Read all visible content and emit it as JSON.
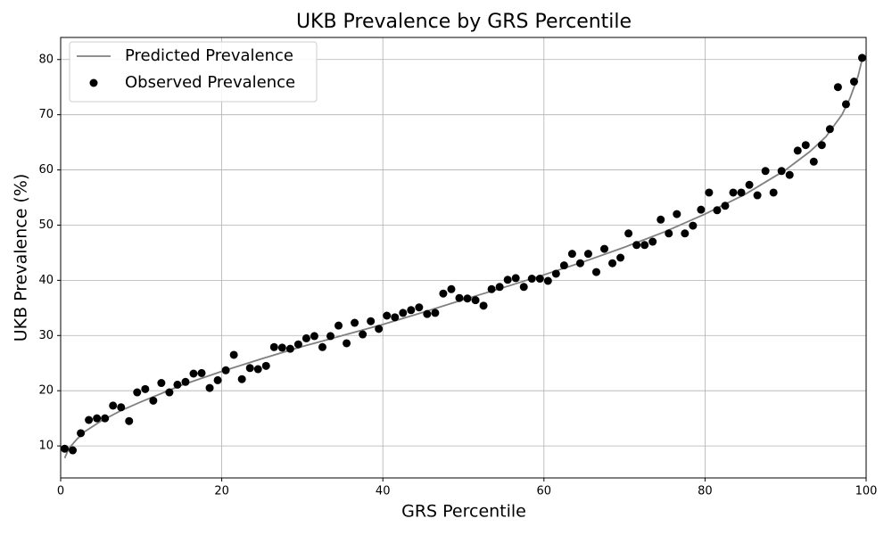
{
  "chart_data": {
    "type": "line",
    "title": "UKB Prevalence by GRS Percentile",
    "xlabel": "GRS Percentile",
    "ylabel": "UKB Prevalence (%)",
    "xlim": [
      0,
      100
    ],
    "ylim": [
      4.2,
      84
    ],
    "xticks": [
      0,
      20,
      40,
      60,
      80,
      100
    ],
    "yticks": [
      10,
      20,
      30,
      40,
      50,
      60,
      70,
      80
    ],
    "grid": true,
    "legend": "upper left",
    "series": [
      {
        "name": "Predicted Prevalence",
        "type": "line",
        "color": "#808080",
        "x": [
          0.5,
          1,
          2,
          3,
          5,
          7.5,
          10,
          15,
          20,
          25,
          30,
          35,
          40,
          45,
          50,
          55,
          60,
          65,
          70,
          75,
          80,
          85,
          90,
          93,
          95,
          97,
          98,
          99,
          99.5
        ],
        "values": [
          7.8,
          9.5,
          11.2,
          12.6,
          14.5,
          16.4,
          18,
          21,
          23.5,
          25.8,
          28,
          30,
          32,
          34.2,
          36.5,
          38.7,
          41,
          43.4,
          46,
          48.8,
          52,
          55.6,
          60,
          63.3,
          66,
          70,
          73,
          77,
          80
        ]
      },
      {
        "name": "Observed Prevalence",
        "type": "scatter",
        "color": "#000000",
        "x": [
          0.5,
          1.5,
          2.5,
          3.5,
          4.5,
          5.5,
          6.5,
          7.5,
          8.5,
          9.5,
          10.5,
          11.5,
          12.5,
          13.5,
          14.5,
          15.5,
          16.5,
          17.5,
          18.5,
          19.5,
          20.5,
          21.5,
          22.5,
          23.5,
          24.5,
          25.5,
          26.5,
          27.5,
          28.5,
          29.5,
          30.5,
          31.5,
          32.5,
          33.5,
          34.5,
          35.5,
          36.5,
          37.5,
          38.5,
          39.5,
          40.5,
          41.5,
          42.5,
          43.5,
          44.5,
          45.5,
          46.5,
          47.5,
          48.5,
          49.5,
          50.5,
          51.5,
          52.5,
          53.5,
          54.5,
          55.5,
          56.5,
          57.5,
          58.5,
          59.5,
          60.5,
          61.5,
          62.5,
          63.5,
          64.5,
          65.5,
          66.5,
          67.5,
          68.5,
          69.5,
          70.5,
          71.5,
          72.5,
          73.5,
          74.5,
          75.5,
          76.5,
          77.5,
          78.5,
          79.5,
          80.5,
          81.5,
          82.5,
          83.5,
          84.5,
          85.5,
          86.5,
          87.5,
          88.5,
          89.5,
          90.5,
          91.5,
          92.5,
          93.5,
          94.5,
          95.5,
          96.5,
          97.5,
          98.5,
          99.5
        ],
        "values": [
          9.5,
          9.2,
          12.3,
          14.7,
          15.0,
          15.0,
          17.3,
          17.0,
          14.5,
          19.7,
          20.3,
          18.2,
          21.4,
          19.7,
          21.1,
          21.6,
          23.1,
          23.2,
          20.5,
          21.9,
          23.7,
          26.5,
          22.1,
          24.1,
          23.9,
          24.5,
          27.9,
          27.8,
          27.6,
          28.4,
          29.5,
          29.9,
          27.9,
          29.9,
          31.8,
          28.6,
          32.3,
          30.2,
          32.6,
          31.2,
          33.6,
          33.3,
          34.1,
          34.6,
          35.1,
          33.9,
          34.1,
          37.6,
          38.4,
          36.8,
          36.7,
          36.4,
          35.4,
          38.4,
          38.8,
          40.1,
          40.4,
          38.8,
          40.3,
          40.3,
          39.9,
          41.2,
          42.7,
          44.8,
          43.1,
          44.8,
          41.5,
          45.7,
          43.1,
          44.1,
          48.5,
          46.4,
          46.4,
          47.0,
          51.0,
          48.5,
          52.0,
          48.5,
          49.9,
          52.8,
          55.9,
          52.7,
          53.5,
          55.9,
          55.9,
          57.3,
          55.4,
          59.8,
          55.9,
          59.8,
          59.1,
          63.5,
          64.5,
          61.5,
          64.5,
          67.4,
          75.0,
          71.9,
          76.0,
          80.3
        ]
      }
    ]
  }
}
